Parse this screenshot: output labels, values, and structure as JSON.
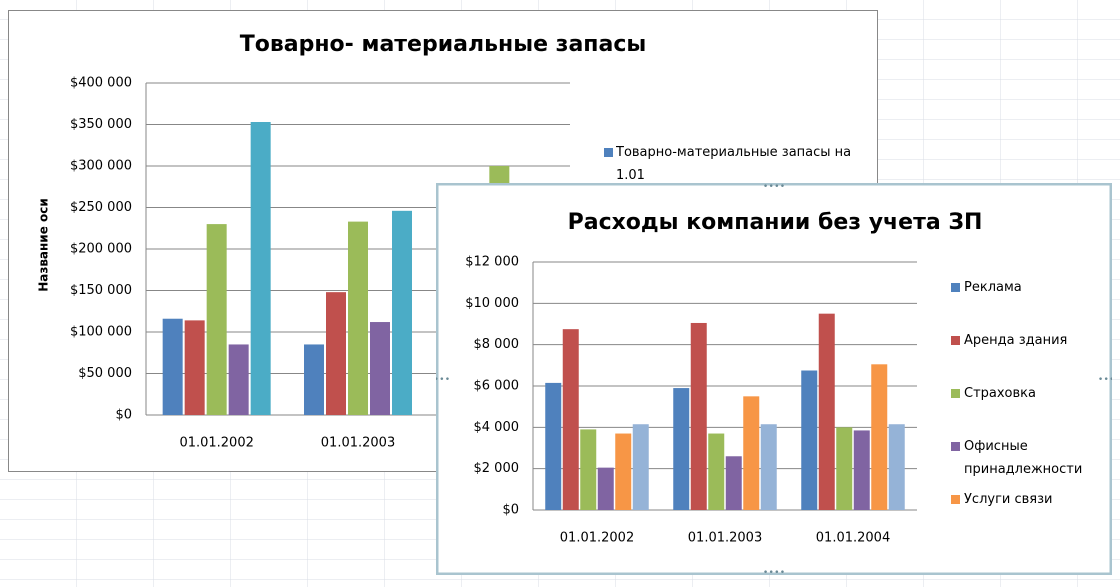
{
  "chart_data": [
    {
      "type": "bar",
      "title": "Товарно- материальные запасы",
      "y_label": "Название оси",
      "categories": [
        "01.01.2002",
        "01.01.2003",
        null
      ],
      "series": [
        {
          "name": "Товарно-материальные запасы на 1.01",
          "color": "#4f81bd",
          "values": [
            116000,
            85000,
            null
          ]
        },
        {
          "color": "#c0504d",
          "values": [
            114000,
            148000,
            null
          ]
        },
        {
          "color": "#9bbb59",
          "values": [
            230000,
            233000,
            300000
          ]
        },
        {
          "color": "#8064a2",
          "values": [
            85000,
            112000,
            null
          ]
        },
        {
          "color": "#4bacc6",
          "values": [
            353000,
            246000,
            null
          ]
        }
      ],
      "ylim": [
        0,
        400000
      ],
      "yticks": [
        {
          "value": 0,
          "label": "$0"
        },
        {
          "value": 50000,
          "label": "$50 000"
        },
        {
          "value": 100000,
          "label": "$100 000"
        },
        {
          "value": 150000,
          "label": "$150 000"
        },
        {
          "value": 200000,
          "label": "$200 000"
        },
        {
          "value": 250000,
          "label": "$250 000"
        },
        {
          "value": 300000,
          "label": "$300 000"
        },
        {
          "value": 350000,
          "label": "$350 000"
        },
        {
          "value": 400000,
          "label": "$400 000"
        }
      ],
      "grid": true
    },
    {
      "type": "bar",
      "title": "Расходы компании без учета ЗП",
      "categories": [
        "01.01.2002",
        "01.01.2003",
        "01.01.2004"
      ],
      "series": [
        {
          "name": "Реклама",
          "color": "#4f81bd",
          "values": [
            6150,
            5900,
            6750
          ]
        },
        {
          "name": "Аренда здания",
          "color": "#c0504d",
          "values": [
            8750,
            9050,
            9500
          ]
        },
        {
          "name": "Страховка",
          "color": "#9bbb59",
          "values": [
            3900,
            3700,
            4000
          ]
        },
        {
          "name": "Офисные принадлежности",
          "color": "#8064a2",
          "values": [
            2050,
            2600,
            3850
          ]
        },
        {
          "name": "Услуги связи",
          "color": "#f79646",
          "values": [
            3700,
            5500,
            7050
          ]
        },
        {
          "color": "#95b3d7",
          "values": [
            4150,
            4150,
            4150
          ]
        }
      ],
      "ylim": [
        0,
        12000
      ],
      "yticks": [
        {
          "value": 0,
          "label": "$0"
        },
        {
          "value": 2000,
          "label": "$2 000"
        },
        {
          "value": 4000,
          "label": "$4 000"
        },
        {
          "value": 6000,
          "label": "$6 000"
        },
        {
          "value": 8000,
          "label": "$8 000"
        },
        {
          "value": 10000,
          "label": "$10 000"
        },
        {
          "value": 12000,
          "label": "$12 000"
        }
      ],
      "grid": true
    }
  ]
}
